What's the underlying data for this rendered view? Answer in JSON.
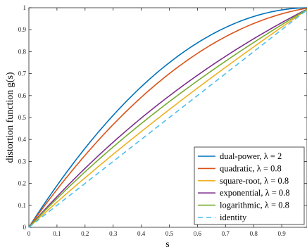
{
  "chart_data": {
    "type": "line",
    "xlabel": "s",
    "ylabel": "distortion function g(s)",
    "xlim": [
      0,
      1
    ],
    "ylim": [
      0,
      1
    ],
    "x_ticks": [
      0,
      0.1,
      0.2,
      0.3,
      0.4,
      0.5,
      0.6,
      0.7,
      0.8,
      0.9
    ],
    "x_tick_labels": [
      "0",
      "0.1",
      "0.2",
      "0.3",
      "0.4",
      "0.5",
      "0.6",
      "0.7",
      "0.8",
      "0.9"
    ],
    "y_ticks": [
      0,
      0.1,
      0.2,
      0.3,
      0.4,
      0.5,
      0.6,
      0.7,
      0.8,
      0.9,
      1
    ],
    "y_tick_labels": [
      "0",
      "0.1",
      "0.2",
      "0.3",
      "0.4",
      "0.5",
      "0.6",
      "0.7",
      "0.8",
      "0.9",
      "1"
    ],
    "grid": false,
    "legend_position": "bottom-right",
    "x": [
      0,
      0.1,
      0.2,
      0.3,
      0.4,
      0.5,
      0.6,
      0.7,
      0.8,
      0.9,
      1
    ],
    "series": [
      {
        "name": "dual-power, λ = 2",
        "color": "#0072BD",
        "dash": "solid",
        "values": [
          0,
          0.19,
          0.36,
          0.51,
          0.64,
          0.75,
          0.84,
          0.91,
          0.96,
          0.99,
          1
        ]
      },
      {
        "name": "quadratic, λ = 0.8",
        "color": "#D95319",
        "dash": "solid",
        "values": [
          0,
          0.172,
          0.328,
          0.468,
          0.592,
          0.7,
          0.792,
          0.868,
          0.928,
          0.972,
          1
        ]
      },
      {
        "name": "square-root, λ = 0.8",
        "color": "#EDB120",
        "dash": "solid",
        "values": [
          0,
          0.119,
          0.233,
          0.342,
          0.446,
          0.547,
          0.644,
          0.738,
          0.829,
          0.916,
          1
        ]
      },
      {
        "name": "exponential, λ = 0.8",
        "color": "#7E2F8E",
        "dash": "solid",
        "values": [
          0,
          0.142,
          0.274,
          0.396,
          0.508,
          0.612,
          0.707,
          0.795,
          0.876,
          0.942,
          1
        ]
      },
      {
        "name": "logarithmic, λ = 0.8",
        "color": "#77AC30",
        "dash": "solid",
        "values": [
          0,
          0.136,
          0.262,
          0.38,
          0.49,
          0.593,
          0.689,
          0.781,
          0.867,
          0.936,
          1
        ]
      },
      {
        "name": "identity",
        "color": "#4DBEEE",
        "dash": "dashed",
        "values": [
          0,
          0.1,
          0.2,
          0.3,
          0.4,
          0.5,
          0.6,
          0.7,
          0.8,
          0.9,
          1
        ]
      }
    ]
  }
}
